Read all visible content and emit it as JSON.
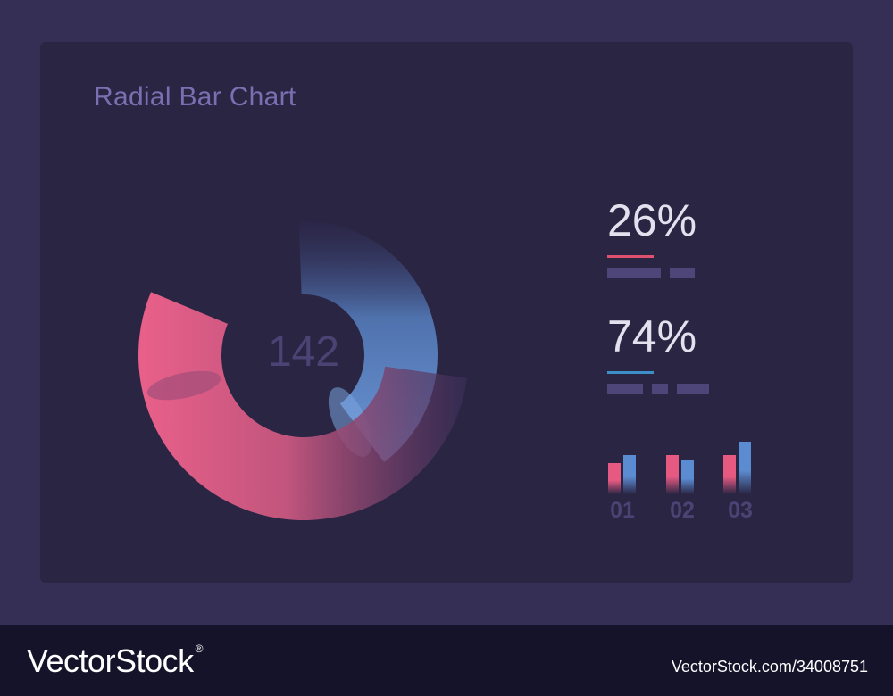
{
  "title": "Radial Bar Chart",
  "center_value": "142",
  "stats": [
    {
      "value": "26%",
      "accent": "#e0506f",
      "placeholder_bars": [
        60,
        28
      ]
    },
    {
      "value": "74%",
      "accent": "#3d8fc9",
      "placeholder_bars": [
        40,
        18,
        36
      ]
    }
  ],
  "colors": {
    "background": "#352f56",
    "card": "#2a2543",
    "pink": "#e65a82",
    "blue": "#5b8bd0",
    "muted_text": "#4b4373"
  },
  "chart_data": [
    {
      "type": "radial-bar",
      "title": "Radial Bar Chart",
      "center_label": "142",
      "series": [
        {
          "value": 26,
          "color": "#5b8bd0"
        },
        {
          "value": 74,
          "color": "#e65a82"
        }
      ]
    },
    {
      "type": "bar",
      "categories": [
        "01",
        "02",
        "03"
      ],
      "series": [
        {
          "color": "#e65a82",
          "values": [
            23,
            33,
            33
          ]
        },
        {
          "color": "#5b8bd0",
          "values": [
            33,
            27,
            50
          ]
        }
      ],
      "ylim": [
        0,
        55
      ]
    }
  ],
  "footer": {
    "logo": "VectorStock",
    "registered": "®",
    "image_id": "VectorStock.com/34008751"
  }
}
